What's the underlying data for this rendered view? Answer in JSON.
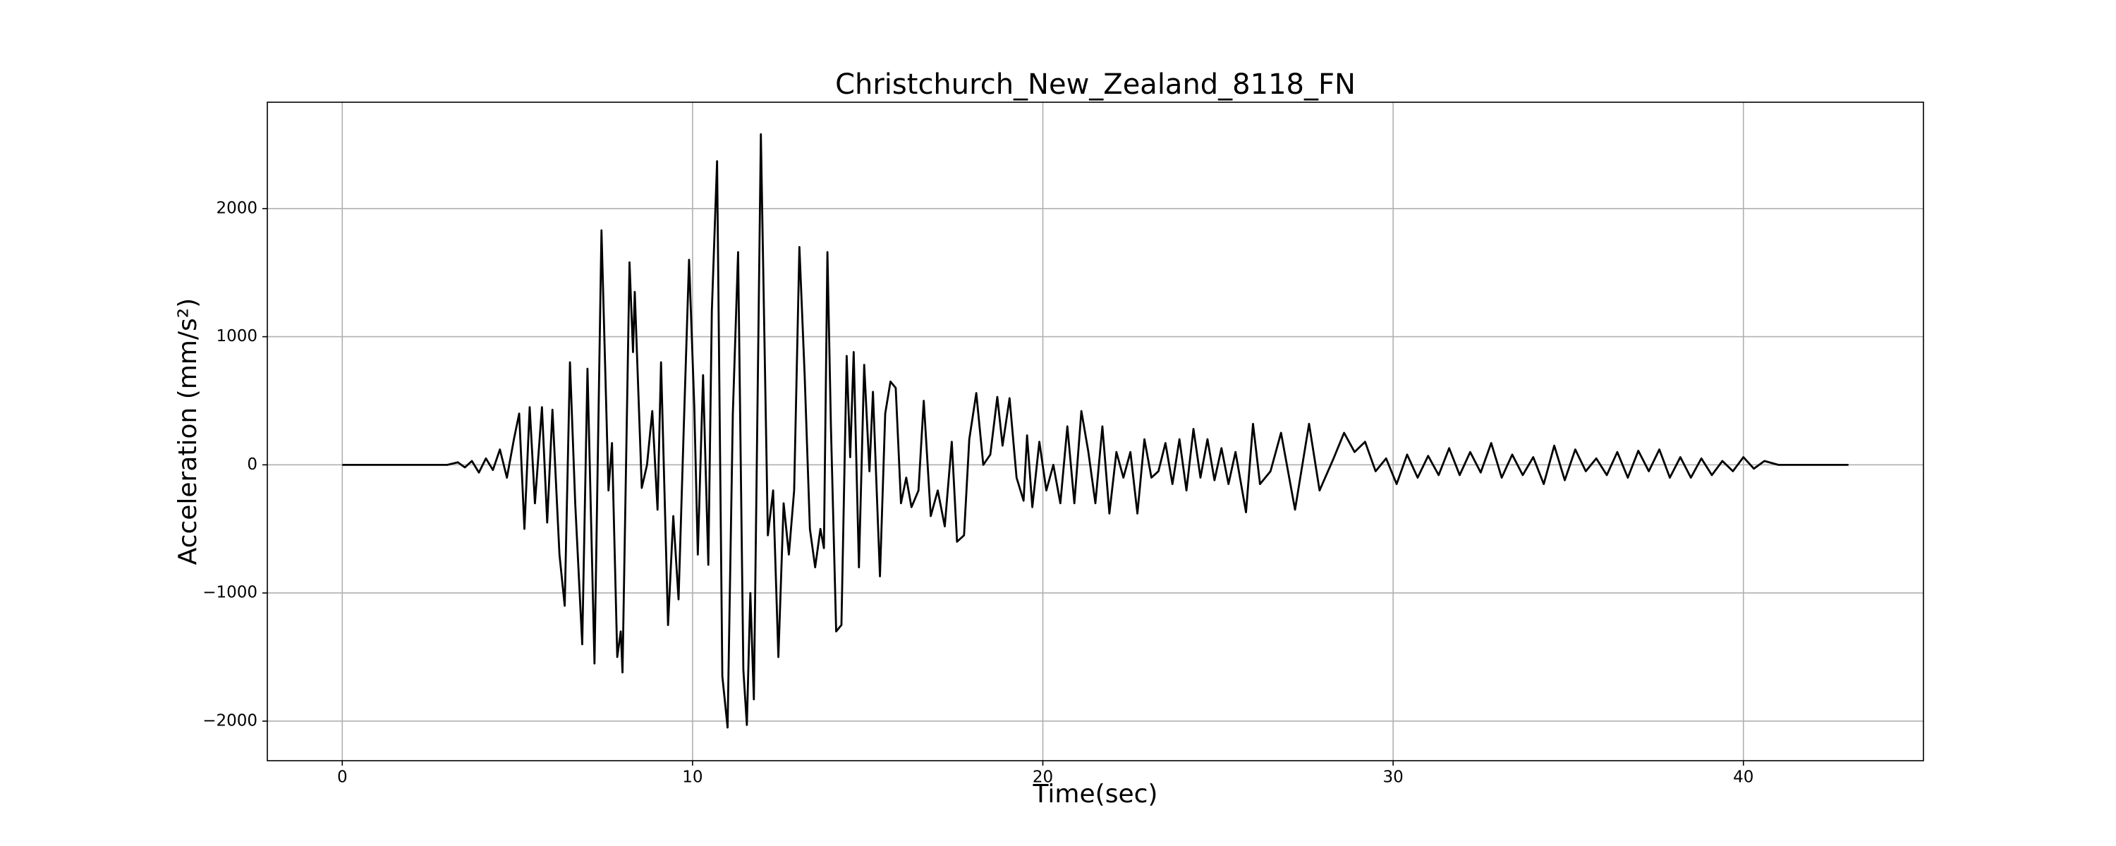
{
  "chart_data": {
    "type": "line",
    "title": "Christchurch_New_Zealand_8118_FN",
    "xlabel": "Time(sec)",
    "ylabel": "Acceleration (mm/s²)",
    "color": "#000000",
    "grid": true,
    "xlim": [
      -2.14,
      45.14
    ],
    "ylim": [
      -2309,
      2830
    ],
    "xticks": [
      0,
      10,
      20,
      30,
      40
    ],
    "yticks": [
      {
        "value": -2000,
        "label": "−2000"
      },
      {
        "value": -1000,
        "label": "−1000"
      },
      0,
      1000,
      2000
    ],
    "x": [
      0,
      3,
      3.3,
      3.5,
      3.7,
      3.9,
      4.1,
      4.3,
      4.5,
      4.7,
      4.9,
      5.05,
      5.2,
      5.35,
      5.5,
      5.7,
      5.85,
      6.0,
      6.2,
      6.35,
      6.5,
      6.65,
      6.85,
      7.0,
      7.2,
      7.4,
      7.6,
      7.7,
      7.85,
      7.95,
      8.0,
      8.2,
      8.3,
      8.35,
      8.55,
      8.7,
      8.85,
      9.0,
      9.1,
      9.3,
      9.45,
      9.6,
      9.75,
      9.9,
      10.05,
      10.15,
      10.3,
      10.45,
      10.55,
      10.7,
      10.85,
      11.0,
      11.15,
      11.3,
      11.45,
      11.55,
      11.65,
      11.75,
      11.95,
      12.15,
      12.3,
      12.45,
      12.6,
      12.75,
      12.9,
      13.05,
      13.2,
      13.35,
      13.5,
      13.65,
      13.75,
      13.85,
      13.95,
      14.1,
      14.25,
      14.4,
      14.5,
      14.6,
      14.75,
      14.9,
      15.05,
      15.15,
      15.35,
      15.5,
      15.65,
      15.8,
      15.95,
      16.1,
      16.25,
      16.45,
      16.6,
      16.8,
      17.0,
      17.2,
      17.4,
      17.55,
      17.75,
      17.9,
      18.1,
      18.3,
      18.5,
      18.7,
      18.85,
      19.05,
      19.25,
      19.45,
      19.55,
      19.7,
      19.9,
      20.1,
      20.3,
      20.5,
      20.7,
      20.9,
      21.1,
      21.3,
      21.5,
      21.7,
      21.9,
      22.1,
      22.3,
      22.5,
      22.7,
      22.9,
      23.1,
      23.3,
      23.5,
      23.7,
      23.9,
      24.1,
      24.3,
      24.5,
      24.7,
      24.9,
      25.1,
      25.3,
      25.5,
      25.8,
      26.0,
      26.2,
      26.5,
      26.8,
      27.2,
      27.6,
      27.9,
      28.3,
      28.6,
      28.9,
      29.2,
      29.5,
      29.8,
      30.1,
      30.4,
      30.7,
      31.0,
      31.3,
      31.6,
      31.9,
      32.2,
      32.5,
      32.8,
      33.1,
      33.4,
      33.7,
      34.0,
      34.3,
      34.6,
      34.9,
      35.2,
      35.5,
      35.8,
      36.1,
      36.4,
      36.7,
      37.0,
      37.3,
      37.6,
      37.9,
      38.2,
      38.5,
      38.8,
      39.1,
      39.4,
      39.7,
      40.0,
      40.3,
      40.6,
      41.0,
      43.0
    ],
    "values": [
      0,
      0,
      20,
      -20,
      30,
      -60,
      50,
      -40,
      120,
      -100,
      200,
      400,
      -500,
      450,
      -300,
      450,
      -450,
      430,
      -700,
      -1100,
      800,
      -300,
      -1400,
      750,
      -1550,
      1830,
      -200,
      170,
      -1500,
      -1300,
      -1620,
      1580,
      880,
      1350,
      -180,
      0,
      420,
      -350,
      800,
      -1250,
      -400,
      -1050,
      300,
      1600,
      450,
      -700,
      700,
      -780,
      1200,
      2370,
      -1650,
      -2050,
      400,
      1660,
      -1600,
      -2030,
      -1000,
      -1830,
      2580,
      -550,
      -200,
      -1500,
      -300,
      -700,
      -200,
      1700,
      700,
      -500,
      -800,
      -500,
      -650,
      1660,
      300,
      -1300,
      -1250,
      850,
      60,
      880,
      -800,
      780,
      -50,
      570,
      -870,
      400,
      650,
      600,
      -300,
      -100,
      -330,
      -200,
      500,
      -400,
      -200,
      -480,
      180,
      -600,
      -550,
      200,
      560,
      0,
      80,
      530,
      150,
      520,
      -100,
      -280,
      230,
      -330,
      180,
      -200,
      0,
      -300,
      300,
      -300,
      420,
      100,
      -300,
      300,
      -380,
      100,
      -100,
      100,
      -380,
      200,
      -100,
      -50,
      170,
      -150,
      200,
      -200,
      280,
      -100,
      200,
      -120,
      130,
      -150,
      100,
      -370,
      320,
      -150,
      -50,
      250,
      -350,
      320,
      -200,
      50,
      250,
      100,
      180,
      -50,
      50,
      -150,
      80,
      -100,
      70,
      -80,
      130,
      -80,
      100,
      -60,
      170,
      -100,
      80,
      -80,
      60,
      -150,
      150,
      -120,
      120,
      -50,
      50,
      -80,
      100,
      -100,
      110,
      -50,
      120,
      -100,
      60,
      -100,
      50,
      -80,
      30,
      -50,
      60,
      -30,
      30,
      0,
      0
    ]
  }
}
